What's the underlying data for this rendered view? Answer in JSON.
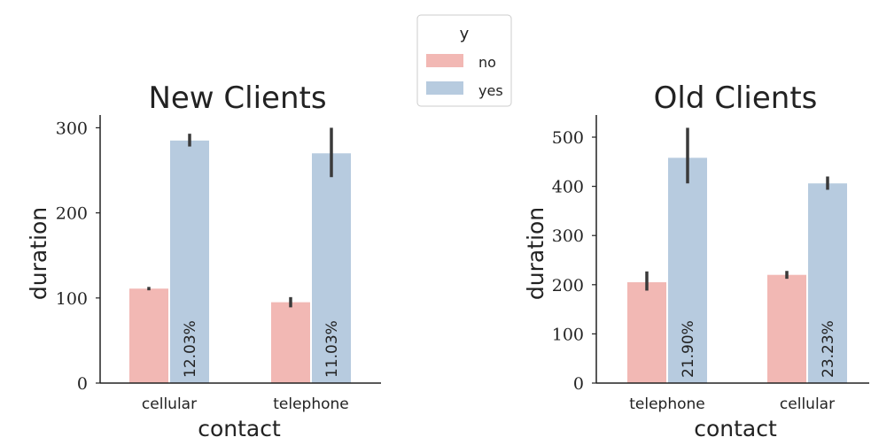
{
  "colors": {
    "no": "#f2b8b4",
    "yes": "#b7cbdf",
    "axis": "#222222",
    "error": "#3a3a3a"
  },
  "legend": {
    "title": "y",
    "entries": [
      {
        "label": "no"
      },
      {
        "label": "yes"
      }
    ],
    "placement": "top-center"
  },
  "chart_data": [
    {
      "type": "bar",
      "title": "New Clients",
      "xlabel": "contact",
      "ylabel": "duration",
      "ylim": [
        0,
        315
      ],
      "yticks": [
        0,
        100,
        200,
        300
      ],
      "categories": [
        "cellular",
        "telephone"
      ],
      "series": [
        {
          "name": "no",
          "values": [
            111,
            95
          ],
          "error_low": [
            109,
            89
          ],
          "error_high": [
            113,
            101
          ]
        },
        {
          "name": "yes",
          "values": [
            285,
            270
          ],
          "error_low": [
            278,
            242
          ],
          "error_high": [
            293,
            300
          ]
        }
      ],
      "annotations": [
        "12.03%",
        "11.03%"
      ],
      "grid": false
    },
    {
      "type": "bar",
      "title": "Old Clients",
      "xlabel": "contact",
      "ylabel": "duration",
      "ylim": [
        0,
        545
      ],
      "yticks": [
        0,
        100,
        200,
        300,
        400,
        500
      ],
      "categories": [
        "telephone",
        "cellular"
      ],
      "series": [
        {
          "name": "no",
          "values": [
            205,
            220
          ],
          "error_low": [
            188,
            212
          ],
          "error_high": [
            227,
            228
          ]
        },
        {
          "name": "yes",
          "values": [
            458,
            406
          ],
          "error_low": [
            406,
            393
          ],
          "error_high": [
            519,
            420
          ]
        }
      ],
      "annotations": [
        "21.90%",
        "23.23%"
      ],
      "grid": false
    }
  ]
}
